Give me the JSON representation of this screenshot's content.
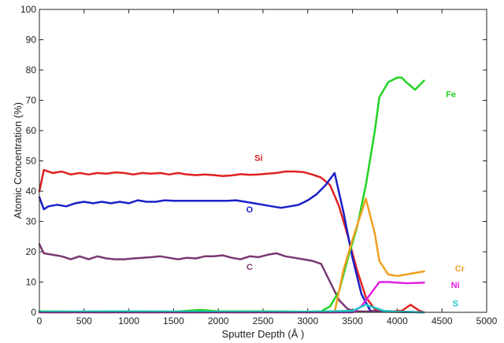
{
  "chart_data": {
    "type": "line",
    "title": "",
    "xlabel": "Sputter Depth (Å )",
    "ylabel": "Atomic Concentration (%)",
    "xlim": [
      0,
      5000
    ],
    "ylim": [
      0,
      100
    ],
    "xticks": [
      0,
      500,
      1000,
      1500,
      2000,
      2500,
      3000,
      3500,
      4000,
      4500,
      5000
    ],
    "yticks": [
      0,
      10,
      20,
      30,
      40,
      50,
      60,
      70,
      80,
      90,
      100
    ],
    "grid": false,
    "legend": "none",
    "series": [
      {
        "name": "Si",
        "color": "#e02020",
        "points": [
          [
            0,
            40
          ],
          [
            50,
            47
          ],
          [
            150,
            46
          ],
          [
            250,
            46.5
          ],
          [
            350,
            45.5
          ],
          [
            450,
            46
          ],
          [
            550,
            45.5
          ],
          [
            650,
            46
          ],
          [
            750,
            45.8
          ],
          [
            850,
            46.2
          ],
          [
            950,
            46
          ],
          [
            1050,
            45.5
          ],
          [
            1150,
            46
          ],
          [
            1250,
            45.8
          ],
          [
            1350,
            46
          ],
          [
            1450,
            45.5
          ],
          [
            1550,
            46
          ],
          [
            1650,
            45.5
          ],
          [
            1750,
            45.3
          ],
          [
            1850,
            45.5
          ],
          [
            1950,
            45.3
          ],
          [
            2050,
            45
          ],
          [
            2150,
            45.2
          ],
          [
            2250,
            45.6
          ],
          [
            2350,
            45.4
          ],
          [
            2450,
            45.5
          ],
          [
            2550,
            45.8
          ],
          [
            2650,
            46
          ],
          [
            2750,
            46.5
          ],
          [
            2850,
            46.5
          ],
          [
            2950,
            46.3
          ],
          [
            3050,
            45.5
          ],
          [
            3150,
            44.5
          ],
          [
            3250,
            42
          ],
          [
            3350,
            35
          ],
          [
            3450,
            25
          ],
          [
            3550,
            14
          ],
          [
            3650,
            5
          ],
          [
            3750,
            1
          ],
          [
            3850,
            0.5
          ],
          [
            3950,
            0.3
          ],
          [
            4050,
            0.5
          ],
          [
            4150,
            2.5
          ],
          [
            4250,
            0.5
          ],
          [
            4300,
            0
          ]
        ]
      },
      {
        "name": "O",
        "color": "#1a20c8",
        "points": [
          [
            0,
            38
          ],
          [
            50,
            34
          ],
          [
            100,
            35
          ],
          [
            200,
            35.5
          ],
          [
            300,
            35
          ],
          [
            400,
            36
          ],
          [
            500,
            36.5
          ],
          [
            600,
            36
          ],
          [
            700,
            36.5
          ],
          [
            800,
            36
          ],
          [
            900,
            36.5
          ],
          [
            1000,
            36
          ],
          [
            1100,
            37
          ],
          [
            1200,
            36.5
          ],
          [
            1300,
            36.5
          ],
          [
            1400,
            37
          ],
          [
            1500,
            36.8
          ],
          [
            1600,
            36.8
          ],
          [
            1700,
            36.8
          ],
          [
            1800,
            36.8
          ],
          [
            1900,
            36.8
          ],
          [
            2000,
            36.8
          ],
          [
            2100,
            36.8
          ],
          [
            2200,
            37
          ],
          [
            2300,
            36.5
          ],
          [
            2400,
            36
          ],
          [
            2500,
            35.5
          ],
          [
            2600,
            35
          ],
          [
            2700,
            34.5
          ],
          [
            2800,
            35
          ],
          [
            2900,
            35.5
          ],
          [
            3000,
            37
          ],
          [
            3100,
            39
          ],
          [
            3200,
            42
          ],
          [
            3300,
            46
          ],
          [
            3400,
            33
          ],
          [
            3500,
            18
          ],
          [
            3600,
            6
          ],
          [
            3700,
            0.5
          ],
          [
            3800,
            0.2
          ],
          [
            4000,
            0.2
          ],
          [
            4300,
            0
          ]
        ]
      },
      {
        "name": "C",
        "color": "#7a3872",
        "points": [
          [
            0,
            22.5
          ],
          [
            50,
            19.5
          ],
          [
            150,
            19
          ],
          [
            250,
            18.5
          ],
          [
            350,
            17.5
          ],
          [
            450,
            18.5
          ],
          [
            550,
            17.5
          ],
          [
            650,
            18.5
          ],
          [
            750,
            17.8
          ],
          [
            850,
            17.5
          ],
          [
            950,
            17.5
          ],
          [
            1050,
            17.8
          ],
          [
            1150,
            18
          ],
          [
            1250,
            18.2
          ],
          [
            1350,
            18.5
          ],
          [
            1450,
            18
          ],
          [
            1550,
            17.5
          ],
          [
            1650,
            18
          ],
          [
            1750,
            17.8
          ],
          [
            1850,
            18.5
          ],
          [
            1950,
            18.5
          ],
          [
            2050,
            18.8
          ],
          [
            2150,
            18
          ],
          [
            2250,
            17.5
          ],
          [
            2350,
            18.5
          ],
          [
            2450,
            18.2
          ],
          [
            2550,
            19
          ],
          [
            2650,
            19.5
          ],
          [
            2750,
            18.5
          ],
          [
            2850,
            18
          ],
          [
            2950,
            17.5
          ],
          [
            3050,
            17
          ],
          [
            3150,
            16
          ],
          [
            3250,
            10
          ],
          [
            3350,
            4
          ],
          [
            3450,
            1
          ],
          [
            3550,
            0.3
          ],
          [
            4300,
            0
          ]
        ]
      },
      {
        "name": "Fe",
        "color": "#22d422",
        "points": [
          [
            0,
            0.3
          ],
          [
            500,
            0.2
          ],
          [
            1000,
            0.3
          ],
          [
            1500,
            0.2
          ],
          [
            1800,
            0.8
          ],
          [
            2000,
            0.3
          ],
          [
            2500,
            0.3
          ],
          [
            3000,
            0.2
          ],
          [
            3150,
            0.3
          ],
          [
            3250,
            2
          ],
          [
            3350,
            7
          ],
          [
            3450,
            18
          ],
          [
            3550,
            28
          ],
          [
            3650,
            42
          ],
          [
            3750,
            60
          ],
          [
            3800,
            71
          ],
          [
            3900,
            76
          ],
          [
            4000,
            77.5
          ],
          [
            4050,
            77.5
          ],
          [
            4100,
            76
          ],
          [
            4200,
            73.5
          ],
          [
            4300,
            76.5
          ]
        ]
      },
      {
        "name": "Cr",
        "color": "#f0a020",
        "points": [
          [
            0,
            0
          ],
          [
            3300,
            0
          ],
          [
            3400,
            14
          ],
          [
            3500,
            24
          ],
          [
            3600,
            33
          ],
          [
            3650,
            37.5
          ],
          [
            3750,
            26
          ],
          [
            3800,
            17
          ],
          [
            3900,
            12.5
          ],
          [
            4000,
            12
          ],
          [
            4100,
            12.5
          ],
          [
            4200,
            13
          ],
          [
            4300,
            13.5
          ]
        ]
      },
      {
        "name": "Ni",
        "color": "#e020e0",
        "points": [
          [
            0,
            0
          ],
          [
            3500,
            0
          ],
          [
            3600,
            2
          ],
          [
            3700,
            6
          ],
          [
            3800,
            10
          ],
          [
            3900,
            10
          ],
          [
            4000,
            9.8
          ],
          [
            4100,
            9.6
          ],
          [
            4200,
            9.7
          ],
          [
            4300,
            9.8
          ]
        ]
      },
      {
        "name": "S",
        "color": "#20c8c8",
        "points": [
          [
            0,
            0.2
          ],
          [
            1000,
            0.3
          ],
          [
            2000,
            0.2
          ],
          [
            3000,
            0.2
          ],
          [
            3500,
            0.5
          ],
          [
            3650,
            2.5
          ],
          [
            3750,
            1.5
          ],
          [
            3850,
            0.5
          ],
          [
            4000,
            0.2
          ],
          [
            4300,
            0
          ]
        ]
      }
    ],
    "series_labels": [
      {
        "text": "Si",
        "x": 2450,
        "y": 50,
        "color": "#e02020"
      },
      {
        "text": "O",
        "x": 2350,
        "y": 33,
        "color": "#1a20c8"
      },
      {
        "text": "C",
        "x": 2350,
        "y": 14,
        "color": "#7a3872"
      },
      {
        "text": "Fe",
        "x": 4600,
        "y": 71,
        "color": "#22d422"
      },
      {
        "text": "Cr",
        "x": 4700,
        "y": 13.5,
        "color": "#f0a020"
      },
      {
        "text": "Ni",
        "x": 4650,
        "y": 8,
        "color": "#e020e0"
      },
      {
        "text": "S",
        "x": 4650,
        "y": 2,
        "color": "#20c8c8"
      }
    ]
  }
}
